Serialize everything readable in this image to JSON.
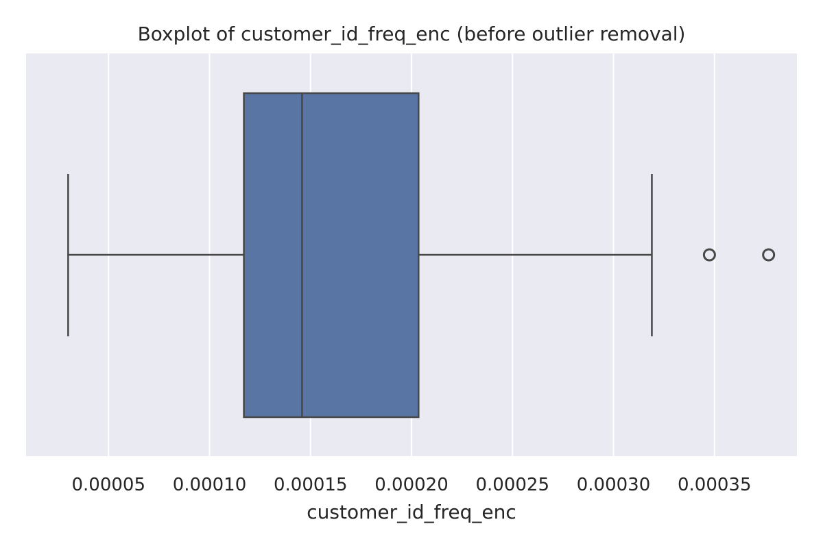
{
  "chart_data": {
    "type": "box",
    "orientation": "horizontal",
    "title": "Boxplot of customer_id_freq_enc (before outlier removal)",
    "xlabel": "customer_id_freq_enc",
    "ylabel": "",
    "xlim": [
      9.17e-06,
      0.00039083
    ],
    "xticks": [
      5e-05,
      0.0001,
      0.00015,
      0.0002,
      0.00025,
      0.0003,
      0.00035
    ],
    "xtick_labels": [
      "0.00005",
      "0.00010",
      "0.00015",
      "0.00020",
      "0.00025",
      "0.00030",
      "0.00035"
    ],
    "grid": true,
    "box": {
      "whisker_low": 3e-05,
      "q1": 0.000117,
      "median": 0.0001458,
      "q3": 0.0002035,
      "whisker_high": 0.000319,
      "outliers": [
        0.0003475,
        0.0003768
      ]
    },
    "colors": {
      "background": "#eaeaf2",
      "grid": "#ffffff",
      "box_fill": "#5875a4",
      "line": "#474747",
      "text": "#262626"
    }
  }
}
